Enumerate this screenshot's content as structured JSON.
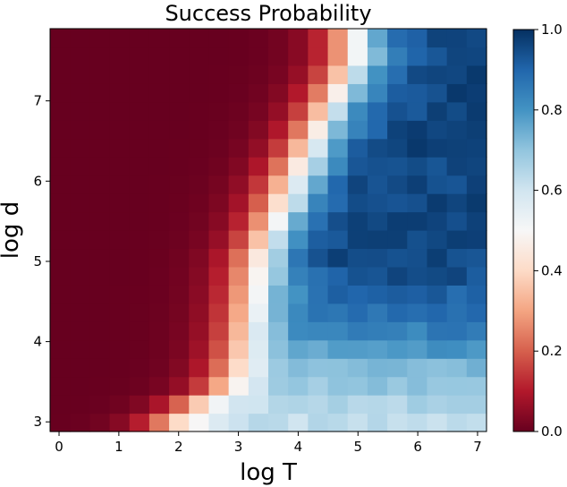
{
  "chart_data": {
    "type": "heatmap",
    "title": "Success Probability",
    "xlabel": "log T",
    "ylabel": "log d",
    "xlim": [
      -0.15,
      7.15
    ],
    "ylim": [
      2.88,
      7.9
    ],
    "x_ticks": [
      0,
      1,
      2,
      3,
      4,
      5,
      6,
      7
    ],
    "y_ticks": [
      3,
      4,
      5,
      6,
      7
    ],
    "colorbar": {
      "min": 0.0,
      "max": 1.0,
      "ticks": [
        0.0,
        0.2,
        0.4,
        0.6,
        0.8,
        1.0
      ],
      "colormap": "RdBu"
    },
    "grid": false,
    "value_description": "Success probability is ~0 (dark red) for small log T, rises through white (0.5) along a boundary curve and reaches ~1 (dark blue) for large log T and log d",
    "boundary_log_T": [
      [
        2.95,
        1.75
      ],
      [
        3.25,
        2.3
      ],
      [
        3.5,
        2.85
      ],
      [
        4.0,
        3.1
      ],
      [
        5.0,
        3.35
      ],
      [
        6.0,
        3.9
      ],
      [
        7.0,
        4.6
      ],
      [
        7.5,
        4.95
      ]
    ],
    "y_regions": [
      {
        "y": 3.0,
        "upper_value": 0.62
      },
      {
        "y": 3.3,
        "upper_value": 0.66
      },
      {
        "y": 3.7,
        "upper_value": 0.74
      },
      {
        "y": 4.1,
        "upper_value": 0.84
      },
      {
        "y": 4.6,
        "upper_value": 0.9
      },
      {
        "y": 5.0,
        "upper_value": 0.96
      },
      {
        "y": 7.9,
        "upper_value": 0.96
      }
    ]
  }
}
